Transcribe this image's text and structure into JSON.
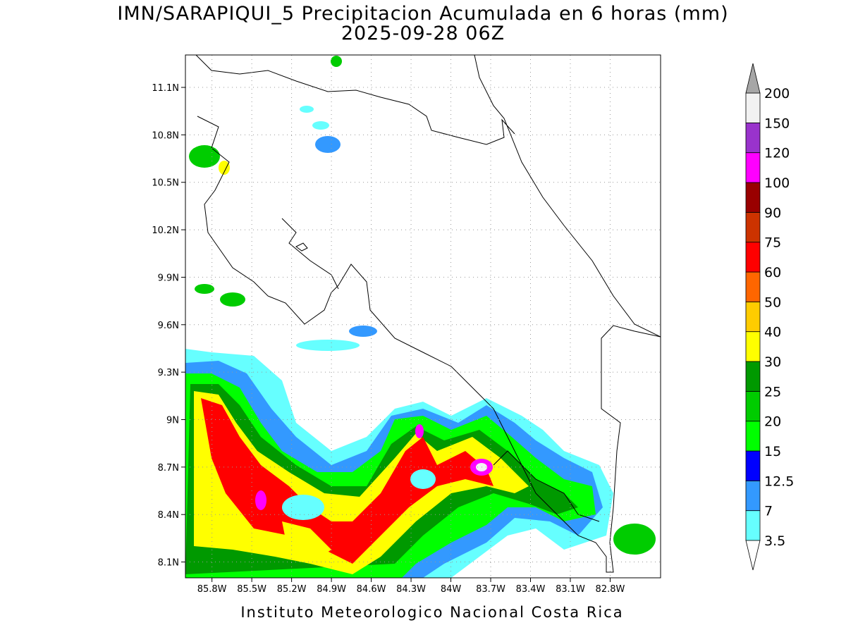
{
  "map": {
    "title": "IMN/SARAPIQUI_5 Precipitacion Acumulada en 6 horas (mm)",
    "subtitle": "2025-09-28 06Z",
    "footer": "Instituto Meteorologico Nacional Costa Rica",
    "lonlim": [
      -86.0,
      -82.42
    ],
    "latlim": [
      8.0,
      11.305
    ],
    "grid": true,
    "lat_ticks": [
      {
        "value": 11.1,
        "label": "11.1N"
      },
      {
        "value": 10.8,
        "label": "10.8N"
      },
      {
        "value": 10.5,
        "label": "10.5N"
      },
      {
        "value": 10.2,
        "label": "10.2N"
      },
      {
        "value": 9.9,
        "label": "9.9N"
      },
      {
        "value": 9.6,
        "label": "9.6N"
      },
      {
        "value": 9.3,
        "label": "9.3N"
      },
      {
        "value": 9,
        "label": "9N"
      },
      {
        "value": 8.7,
        "label": "8.7N"
      },
      {
        "value": 8.4,
        "label": "8.4N"
      },
      {
        "value": 8.1,
        "label": "8.1N"
      }
    ],
    "lon_ticks": [
      {
        "value": -85.8,
        "label": "85.8W"
      },
      {
        "value": -85.5,
        "label": "85.5W"
      },
      {
        "value": -85.2,
        "label": "85.2W"
      },
      {
        "value": -84.9,
        "label": "84.9W"
      },
      {
        "value": -84.6,
        "label": "84.6W"
      },
      {
        "value": -84.3,
        "label": "84.3W"
      },
      {
        "value": -84,
        "label": "84W"
      },
      {
        "value": -83.7,
        "label": "83.7W"
      },
      {
        "value": -83.4,
        "label": "83.4W"
      },
      {
        "value": -83.1,
        "label": "83.1W"
      },
      {
        "value": -82.8,
        "label": "82.8W"
      }
    ],
    "legend": {
      "levels": [
        3.5,
        7,
        12.5,
        15,
        20,
        25,
        30,
        40,
        50,
        60,
        75,
        90,
        100,
        120,
        150,
        200
      ],
      "colors": [
        "#66ffff",
        "#3399ff",
        "#0000ff",
        "#00ff00",
        "#00cc00",
        "#009900",
        "#ffff00",
        "#ffcc00",
        "#ff6600",
        "#ff0000",
        "#cc3300",
        "#990000",
        "#ff00ff",
        "#9933cc",
        "#f2f2f2"
      ],
      "under_color": "#ffffff",
      "over_color": "#a6a6a6"
    }
  }
}
